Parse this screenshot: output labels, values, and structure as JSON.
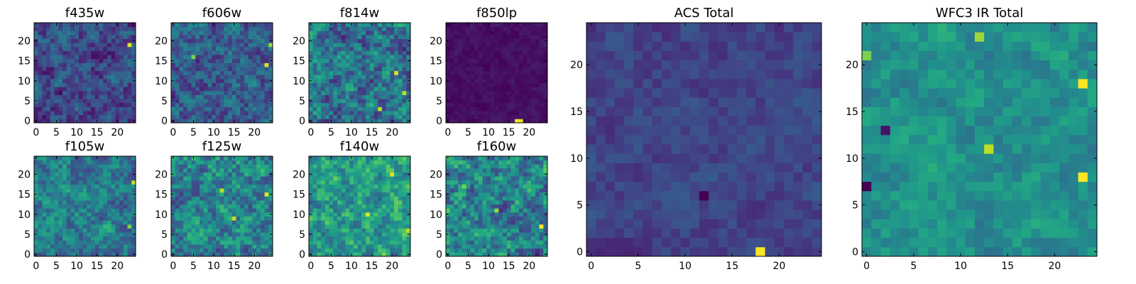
{
  "chart_data": [
    {
      "type": "heatmap",
      "title": "f435w",
      "xticks": [
        "0",
        "5",
        "10",
        "15",
        "20"
      ],
      "yticks": [
        "0",
        "5",
        "10",
        "15",
        "20"
      ],
      "xlim": [
        -0.5,
        24.5
      ],
      "ylim": [
        -0.5,
        24.5
      ],
      "grid_size": 25,
      "value_range": [
        0,
        1
      ],
      "seed": 11,
      "base": 0.22,
      "noise": 0.18,
      "hotspots": [
        {
          "x": 23,
          "y": 19,
          "v": 0.95
        }
      ]
    },
    {
      "type": "heatmap",
      "title": "f606w",
      "xticks": [
        "0",
        "5",
        "10",
        "15",
        "20"
      ],
      "yticks": [
        "0",
        "5",
        "10",
        "15",
        "20"
      ],
      "xlim": [
        -0.5,
        24.5
      ],
      "ylim": [
        -0.5,
        24.5
      ],
      "grid_size": 25,
      "value_range": [
        0,
        1
      ],
      "seed": 23,
      "base": 0.3,
      "noise": 0.2,
      "hotspots": [
        {
          "x": 23,
          "y": 14,
          "v": 0.95
        },
        {
          "x": 24,
          "y": 19,
          "v": 0.85
        },
        {
          "x": 5,
          "y": 16,
          "v": 0.8
        }
      ]
    },
    {
      "type": "heatmap",
      "title": "f814w",
      "xticks": [
        "0",
        "5",
        "10",
        "15",
        "20"
      ],
      "yticks": [
        "0",
        "5",
        "10",
        "15",
        "20"
      ],
      "xlim": [
        -0.5,
        24.5
      ],
      "ylim": [
        -0.5,
        24.5
      ],
      "grid_size": 25,
      "value_range": [
        0,
        1
      ],
      "seed": 37,
      "base": 0.38,
      "noise": 0.26,
      "hotspots": [
        {
          "x": 21,
          "y": 12,
          "v": 0.95
        },
        {
          "x": 23,
          "y": 7,
          "v": 0.9
        },
        {
          "x": 17,
          "y": 3,
          "v": 0.9
        }
      ]
    },
    {
      "type": "heatmap",
      "title": "f850lp",
      "xticks": [
        "0",
        "5",
        "10",
        "15",
        "20"
      ],
      "yticks": [
        "0",
        "5",
        "10",
        "15",
        "20"
      ],
      "xlim": [
        -0.5,
        24.5
      ],
      "ylim": [
        -0.5,
        24.5
      ],
      "grid_size": 25,
      "value_range": [
        0,
        1
      ],
      "seed": 41,
      "base": 0.04,
      "noise": 0.04,
      "hotspots": [
        {
          "x": 17,
          "y": 0,
          "v": 1.0
        },
        {
          "x": 18,
          "y": 0,
          "v": 0.95
        }
      ]
    },
    {
      "type": "heatmap",
      "title": "f105w",
      "xticks": [
        "0",
        "5",
        "10",
        "15",
        "20"
      ],
      "yticks": [
        "0",
        "5",
        "10",
        "15",
        "20"
      ],
      "xlim": [
        -0.5,
        24.5
      ],
      "ylim": [
        -0.5,
        24.5
      ],
      "grid_size": 25,
      "value_range": [
        0,
        1
      ],
      "seed": 53,
      "base": 0.42,
      "noise": 0.2,
      "hotspots": [
        {
          "x": 24,
          "y": 18,
          "v": 0.9
        },
        {
          "x": 23,
          "y": 7,
          "v": 0.8
        }
      ]
    },
    {
      "type": "heatmap",
      "title": "f125w",
      "xticks": [
        "0",
        "5",
        "10",
        "15",
        "20"
      ],
      "yticks": [
        "0",
        "5",
        "10",
        "15",
        "20"
      ],
      "xlim": [
        -0.5,
        24.5
      ],
      "ylim": [
        -0.5,
        24.5
      ],
      "grid_size": 25,
      "value_range": [
        0,
        1
      ],
      "seed": 67,
      "base": 0.45,
      "noise": 0.24,
      "hotspots": [
        {
          "x": 23,
          "y": 15,
          "v": 0.95
        },
        {
          "x": 12,
          "y": 16,
          "v": 0.9
        },
        {
          "x": 15,
          "y": 9,
          "v": 0.9
        }
      ]
    },
    {
      "type": "heatmap",
      "title": "f140w",
      "xticks": [
        "0",
        "5",
        "10",
        "15",
        "20"
      ],
      "yticks": [
        "0",
        "5",
        "10",
        "15",
        "20"
      ],
      "xlim": [
        -0.5,
        24.5
      ],
      "ylim": [
        -0.5,
        24.5
      ],
      "grid_size": 25,
      "value_range": [
        0,
        1
      ],
      "seed": 79,
      "base": 0.55,
      "noise": 0.22,
      "hotspots": [
        {
          "x": 20,
          "y": 20,
          "v": 0.95
        },
        {
          "x": 14,
          "y": 10,
          "v": 0.95
        },
        {
          "x": 24,
          "y": 6,
          "v": 0.9
        }
      ]
    },
    {
      "type": "heatmap",
      "title": "f160w",
      "xticks": [
        "0",
        "5",
        "10",
        "15",
        "20"
      ],
      "yticks": [
        "0",
        "5",
        "10",
        "15",
        "20"
      ],
      "xlim": [
        -0.5,
        24.5
      ],
      "ylim": [
        -0.5,
        24.5
      ],
      "grid_size": 25,
      "value_range": [
        0,
        1
      ],
      "seed": 83,
      "base": 0.45,
      "noise": 0.26,
      "hotspots": [
        {
          "x": 23,
          "y": 7,
          "v": 1.0
        },
        {
          "x": 12,
          "y": 11,
          "v": 0.85
        },
        {
          "x": 4,
          "y": 17,
          "v": 0.8
        }
      ]
    },
    {
      "type": "heatmap",
      "title": "ACS Total",
      "xticks": [
        "0",
        "5",
        "10",
        "15",
        "20"
      ],
      "yticks": [
        "0",
        "5",
        "10",
        "15",
        "20"
      ],
      "xlim": [
        -0.5,
        24.5
      ],
      "ylim": [
        -0.5,
        24.5
      ],
      "grid_size": 25,
      "value_range": [
        0,
        1
      ],
      "seed": 97,
      "base": 0.2,
      "noise": 0.08,
      "hotspots": [
        {
          "x": 18,
          "y": 0,
          "v": 1.0
        },
        {
          "x": 12,
          "y": 6,
          "v": 0.0
        }
      ]
    },
    {
      "type": "heatmap",
      "title": "WFC3 IR Total",
      "xticks": [
        "0",
        "5",
        "10",
        "15",
        "20"
      ],
      "yticks": [
        "0",
        "5",
        "10",
        "15",
        "20"
      ],
      "xlim": [
        -0.5,
        24.5
      ],
      "ylim": [
        -0.5,
        24.5
      ],
      "grid_size": 25,
      "value_range": [
        0,
        1
      ],
      "seed": 101,
      "base": 0.5,
      "noise": 0.12,
      "hotspots": [
        {
          "x": 23,
          "y": 18,
          "v": 1.0
        },
        {
          "x": 23,
          "y": 8,
          "v": 1.0
        },
        {
          "x": 13,
          "y": 11,
          "v": 0.9
        },
        {
          "x": 12,
          "y": 23,
          "v": 0.85
        },
        {
          "x": 0,
          "y": 21,
          "v": 0.8
        },
        {
          "x": 2,
          "y": 13,
          "v": 0.05
        },
        {
          "x": 0,
          "y": 7,
          "v": 0.0
        }
      ]
    }
  ]
}
